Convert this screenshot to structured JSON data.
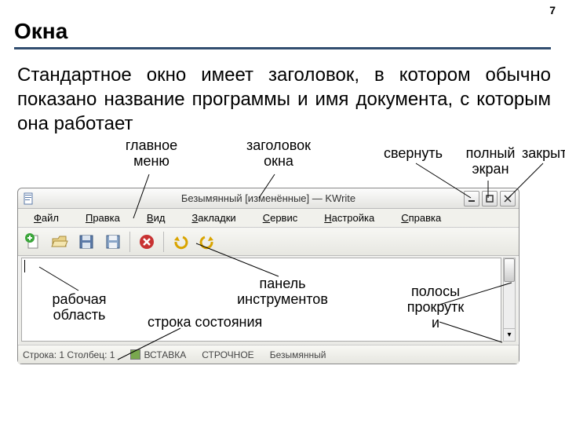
{
  "page_number": "7",
  "heading": "Окна",
  "description": "Стандартное окно имеет заголовок, в котором обычно показано название программы и имя документа, с которым она работает",
  "labels": {
    "main_menu": "главное\nменю",
    "title": "заголовок\nокна",
    "minimize": "свернуть",
    "fullscreen": "полный\nэкран",
    "close": "закрыть",
    "workarea": "рабочая\nобласть",
    "toolbar": "панель\nинструментов",
    "statusbar": "строка состояния",
    "scrollbars": "полосы\nпрокрутк\nи"
  },
  "window": {
    "title": "Безымянный [изменённые] — KWrite",
    "menu": [
      "Файл",
      "Правка",
      "Вид",
      "Закладки",
      "Сервис",
      "Настройка",
      "Справка"
    ],
    "menu_accel": [
      0,
      0,
      0,
      0,
      0,
      0,
      0
    ],
    "status": {
      "line_col": "Строка: 1 Столбец: 1",
      "insert": "ВСТАВКА",
      "mode": "СТРОЧНОЕ",
      "name": "Безымянный"
    }
  },
  "colors": {
    "rule": "#324e70",
    "new_plus": "#3aa53a",
    "close_x": "#c83232",
    "undo": "#d9a400",
    "redo": "#d9a400"
  }
}
